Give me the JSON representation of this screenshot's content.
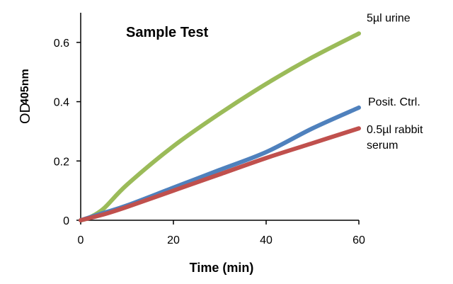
{
  "chart_data": {
    "type": "line",
    "title": "Sample Test",
    "xlabel": "Time (min)",
    "ylabel": "OD",
    "ylabel_subscript": "405nm",
    "xlim": [
      0,
      60
    ],
    "ylim": [
      0,
      0.7
    ],
    "x_ticks": [
      "0",
      "20",
      "40",
      "60"
    ],
    "y_ticks": [
      "0",
      "0.2",
      "0.4",
      "0.6"
    ],
    "grid": false,
    "legend": "none",
    "series": [
      {
        "name": "5µl urine",
        "color": "#9bbb59",
        "x": [
          0,
          2,
          5,
          10,
          20,
          30,
          40,
          50,
          60
        ],
        "y": [
          0,
          0.01,
          0.04,
          0.12,
          0.25,
          0.36,
          0.46,
          0.55,
          0.63
        ]
      },
      {
        "name": "Posit. Ctrl.",
        "color": "#4f81bd",
        "x": [
          0,
          5,
          10,
          20,
          30,
          40,
          50,
          60
        ],
        "y": [
          0,
          0.025,
          0.05,
          0.11,
          0.17,
          0.23,
          0.31,
          0.38
        ]
      },
      {
        "name": "0.5µl rabbit serum",
        "name_lines": [
          "0.5µl rabbit",
          "serum"
        ],
        "color": "#c0504d",
        "x": [
          0,
          5,
          10,
          20,
          30,
          40,
          50,
          60
        ],
        "y": [
          0,
          0.02,
          0.045,
          0.1,
          0.155,
          0.21,
          0.26,
          0.31
        ]
      }
    ]
  }
}
